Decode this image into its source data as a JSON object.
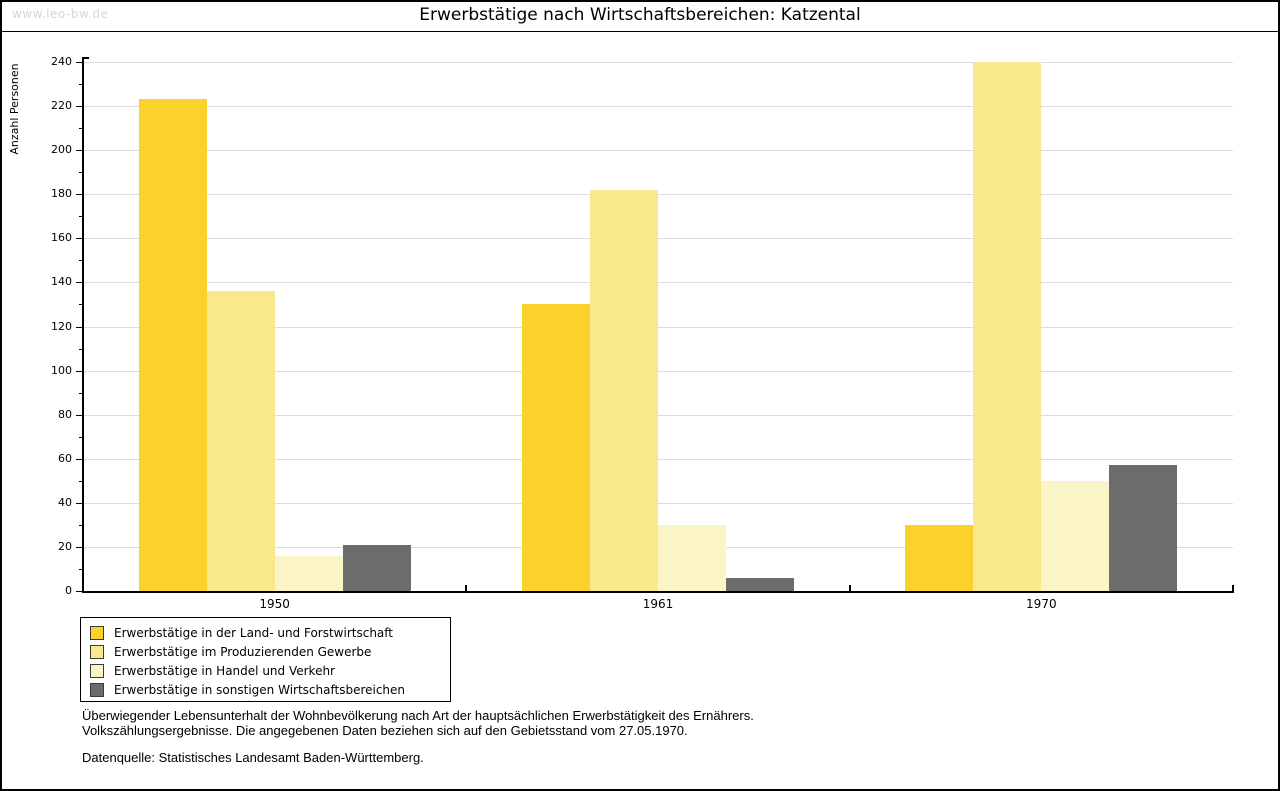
{
  "header": {
    "watermark": "www.leo-bw.de"
  },
  "chart_data": {
    "type": "bar",
    "title": "Erwerbstätige nach Wirtschaftsbereichen: Katzental",
    "categories": [
      "1950",
      "1961",
      "1970"
    ],
    "series": [
      {
        "name": "Erwerbstätige in der Land- und Forstwirtschaft",
        "color": "#FBD12B",
        "values": [
          223,
          130,
          30
        ]
      },
      {
        "name": "Erwerbstätige im Produzierenden Gewerbe",
        "color": "#FAE88D",
        "values": [
          136,
          182,
          240
        ]
      },
      {
        "name": "Erwerbstätige in Handel und Verkehr",
        "color": "#FBF4C7",
        "values": [
          16,
          30,
          50
        ]
      },
      {
        "name": "Erwerbstätige in sonstigen Wirtschaftsbereichen",
        "color": "#6C6C6C",
        "values": [
          21,
          6,
          57
        ]
      }
    ],
    "xlabel": "",
    "ylabel": "Anzahl Personen",
    "ylim": [
      0,
      240
    ],
    "ytick_step": 20,
    "ytick_minor_step": 10,
    "grid": true,
    "legend_position": "bottom-left"
  },
  "footer": {
    "description_line1": "Überwiegender Lebensunterhalt der Wohnbevölkerung nach Art der hauptsächlichen Erwerbstätigkeit des Ernährers.",
    "description_line2": "Volkszählungsergebnisse. Die angegebenen Daten beziehen sich auf den Gebietsstand vom 27.05.1970.",
    "source": "Datenquelle: Statistisches Landesamt Baden-Württemberg."
  },
  "colors": {
    "grid": "#DCDCDC",
    "axis": "#000000",
    "watermark": "#D5D5D5",
    "frame": "#000000"
  }
}
